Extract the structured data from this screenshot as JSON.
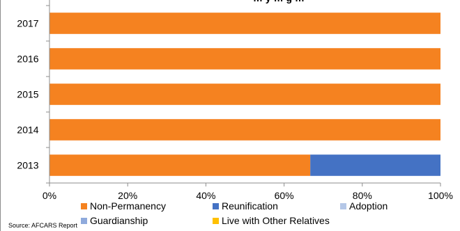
{
  "chart_data": {
    "type": "bar",
    "orientation": "horizontal",
    "stacked": "percent",
    "title": "… y … g …",
    "categories": [
      "2017",
      "2016",
      "2015",
      "2014",
      "2013"
    ],
    "series": [
      {
        "name": "Non-Permanency",
        "color": "#f58220",
        "values": [
          100,
          100,
          100,
          100,
          66.7
        ]
      },
      {
        "name": "Reunification",
        "color": "#4472c4",
        "values": [
          0,
          0,
          0,
          0,
          33.3
        ]
      },
      {
        "name": "Adoption",
        "color": "#b4c7e7",
        "values": [
          0,
          0,
          0,
          0,
          0
        ]
      },
      {
        "name": "Guardianship",
        "color": "#8faadc",
        "values": [
          0,
          0,
          0,
          0,
          0
        ]
      },
      {
        "name": "Live with Other Relatives",
        "color": "#ffc000",
        "values": [
          0,
          0,
          0,
          0,
          0
        ]
      }
    ],
    "xlim": [
      0,
      100
    ],
    "xticks": [
      "0%",
      "20%",
      "40%",
      "60%",
      "80%",
      "100%"
    ],
    "grid": false,
    "legend_position": "bottom"
  },
  "source": "Source: AFCARS Report"
}
